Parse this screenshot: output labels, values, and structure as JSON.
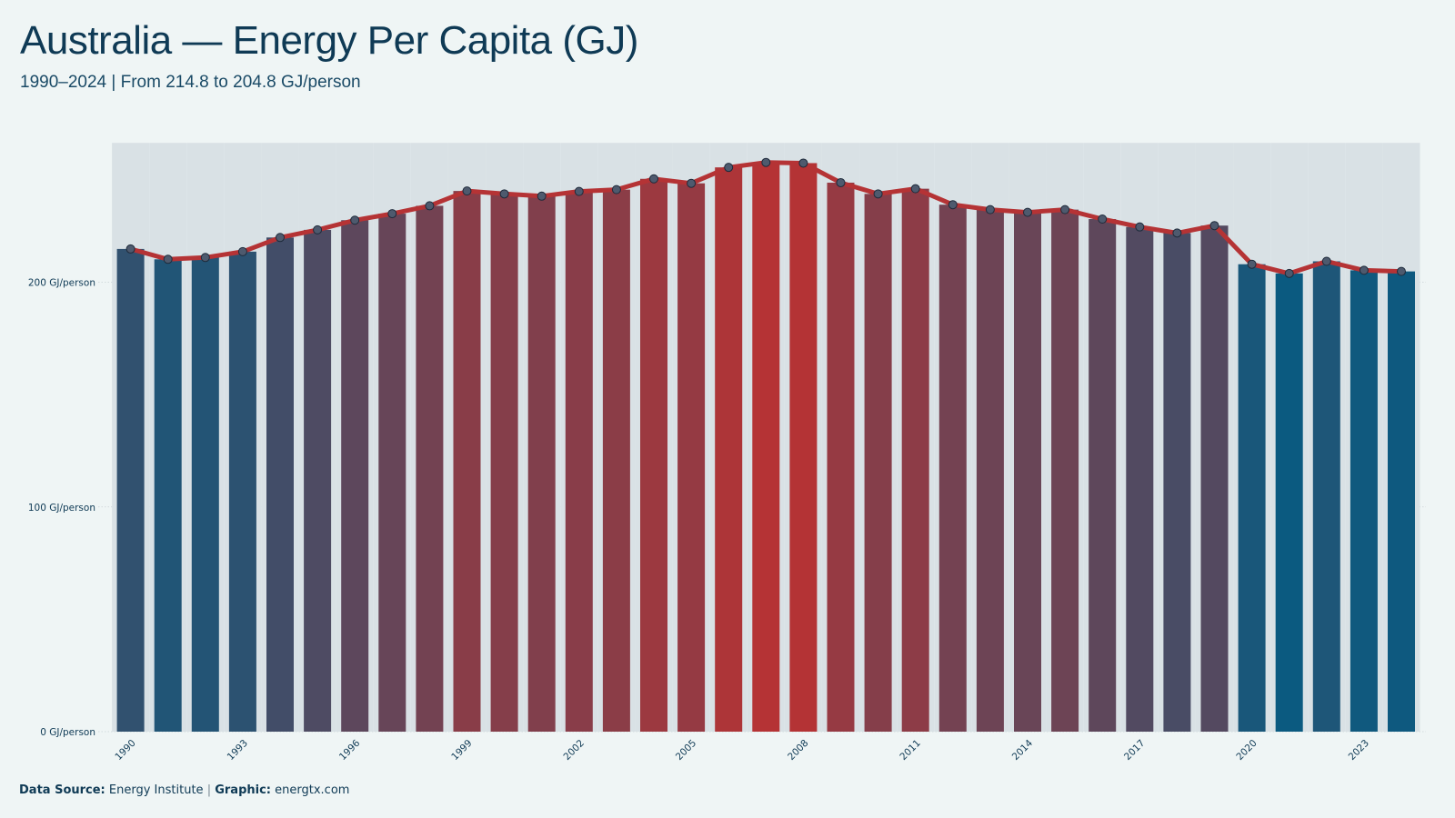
{
  "title": "Australia — Energy Per Capita (GJ)",
  "subtitle": "1990–2024 | From 214.8 to 204.8 GJ/person",
  "footer": {
    "source_label": "Data Source:",
    "source_value": "Energy Institute",
    "separator": "|",
    "graphic_label": "Graphic:",
    "graphic_value": "energtx.com"
  },
  "colors": {
    "low": "#0b5a80",
    "high": "#b53335",
    "line": "#b53335",
    "bar_background": "#d9e1e5",
    "point_fill": "#4e5a6e",
    "grid": "#c9d1d5",
    "axis_text": "#0f3a55"
  },
  "chart_data": {
    "type": "bar",
    "title": "Australia — Energy Per Capita (GJ)",
    "subtitle": "1990–2024 | From 214.8 to 204.8 GJ/person",
    "xlabel": "",
    "ylabel": "",
    "ylim": [
      0,
      262
    ],
    "y_ticks": [
      0,
      100,
      200
    ],
    "y_tick_labels": [
      "0 GJ/person",
      "100 GJ/person",
      "200 GJ/person"
    ],
    "x_tick_labels": [
      "1990",
      "1993",
      "1996",
      "1999",
      "2002",
      "2005",
      "2008",
      "2011",
      "2014",
      "2017",
      "2020",
      "2023"
    ],
    "grid": true,
    "categories": [
      "1990",
      "1991",
      "1992",
      "1993",
      "1994",
      "1995",
      "1996",
      "1997",
      "1998",
      "1999",
      "2000",
      "2001",
      "2002",
      "2003",
      "2004",
      "2005",
      "2006",
      "2007",
      "2008",
      "2009",
      "2010",
      "2011",
      "2012",
      "2013",
      "2014",
      "2015",
      "2016",
      "2017",
      "2018",
      "2019",
      "2020",
      "2021",
      "2022",
      "2023",
      "2024"
    ],
    "series": [
      {
        "values": [
          214.8,
          210.2,
          211.0,
          213.6,
          219.9,
          223.3,
          227.6,
          230.5,
          234.0,
          240.6,
          239.3,
          238.3,
          240.4,
          241.2,
          246.0,
          244.0,
          251.1,
          253.3,
          253.0,
          244.3,
          239.3,
          241.6,
          234.5,
          232.3,
          231.1,
          232.3,
          228.1,
          224.6,
          221.9,
          225.2,
          208.0,
          203.9,
          209.3,
          205.3,
          204.8
        ]
      }
    ]
  }
}
